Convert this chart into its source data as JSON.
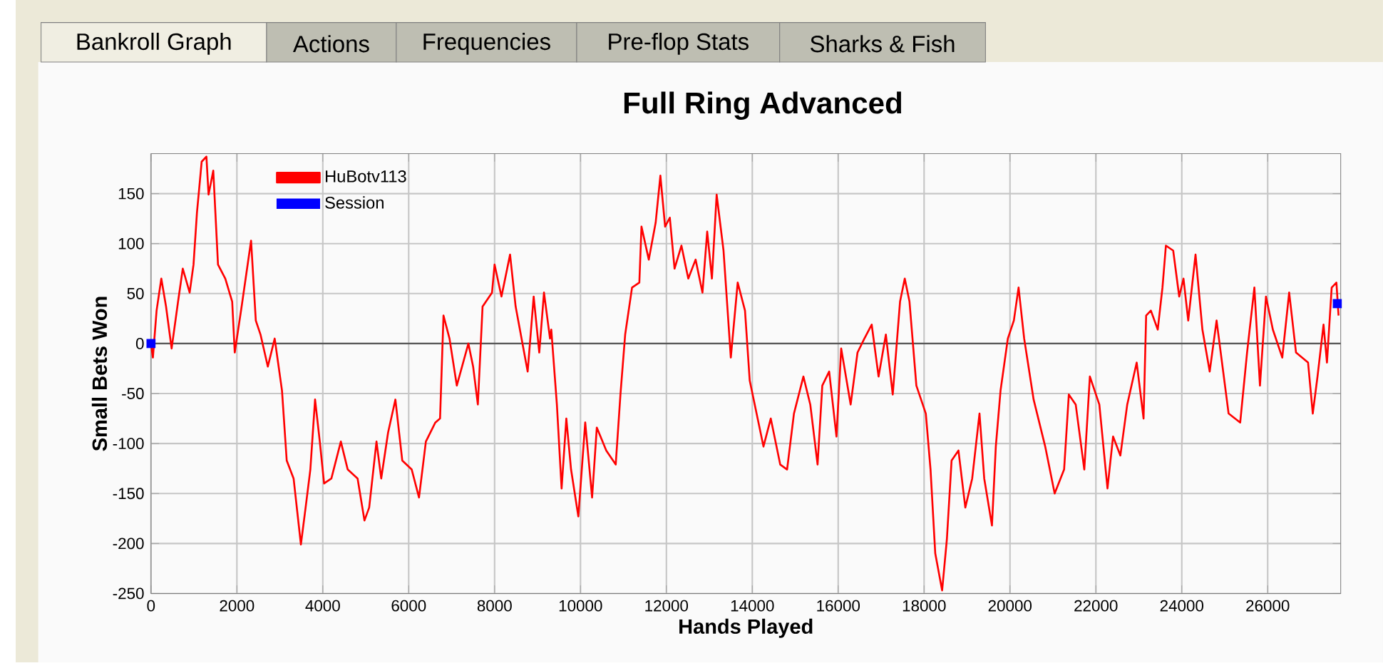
{
  "chart_data": {
    "type": "line",
    "title": "Full Ring Advanced",
    "xlabel": "Hands Played",
    "ylabel": "Small Bets Won",
    "annotations": [
      "Bankroll Graph",
      "Actions",
      "Frequencies",
      "Pre-flop Stats",
      "Sharks & Fish"
    ],
    "xlim": [
      0,
      27700
    ],
    "ylim": [
      -250,
      190
    ],
    "xticks": [
      0,
      2000,
      4000,
      6000,
      8000,
      10000,
      12000,
      14000,
      16000,
      18000,
      20000,
      22000,
      24000,
      26000
    ],
    "yticks": [
      -250,
      -200,
      -150,
      -100,
      -50,
      0,
      50,
      100,
      150
    ],
    "grid": true,
    "legend": "top left",
    "ref_lines": [
      {
        "axis": "y",
        "value": 0,
        "color": "#555555"
      }
    ],
    "series": [
      {
        "name": "HuBotv113",
        "color": "#ff0000",
        "line_style": "solid",
        "x": [
          0,
          44,
          130,
          240,
          350,
          480,
          630,
          740,
          900,
          990,
          1070,
          1180,
          1290,
          1340,
          1450,
          1560,
          1730,
          1890,
          1950,
          2110,
          2330,
          2440,
          2550,
          2720,
          2880,
          3050,
          3160,
          3320,
          3490,
          3600,
          3710,
          3820,
          3930,
          4030,
          4200,
          4420,
          4580,
          4810,
          4970,
          5080,
          5250,
          5360,
          5520,
          5690,
          5850,
          6070,
          6240,
          6400,
          6620,
          6730,
          6810,
          6950,
          7120,
          7390,
          7500,
          7610,
          7720,
          7940,
          8000,
          8160,
          8360,
          8490,
          8770,
          8910,
          9040,
          9150,
          9290,
          9320,
          9450,
          9560,
          9670,
          9780,
          9950,
          10110,
          10270,
          10380,
          10600,
          10820,
          10930,
          11040,
          11200,
          11370,
          11420,
          11590,
          11750,
          11860,
          11970,
          12080,
          12190,
          12350,
          12510,
          12680,
          12840,
          12950,
          13060,
          13170,
          13330,
          13500,
          13660,
          13830,
          13940,
          14100,
          14260,
          14430,
          14650,
          14810,
          14970,
          15190,
          15350,
          15520,
          15630,
          15790,
          15960,
          16070,
          16290,
          16450,
          16610,
          16780,
          16940,
          17110,
          17270,
          17440,
          17550,
          17660,
          17820,
          18040,
          18150,
          18260,
          18420,
          18530,
          18640,
          18800,
          18960,
          19120,
          19290,
          19400,
          19580,
          19670,
          19780,
          19950,
          20090,
          20200,
          20330,
          20550,
          20820,
          21040,
          21260,
          21370,
          21530,
          21730,
          21860,
          22080,
          22270,
          22400,
          22570,
          22730,
          22950,
          23110,
          23170,
          23280,
          23440,
          23550,
          23630,
          23800,
          23940,
          24040,
          24150,
          24320,
          24480,
          24650,
          24810,
          25090,
          25360,
          25520,
          25690,
          25820,
          25960,
          26120,
          26340,
          26500,
          26660,
          26940,
          27050,
          27160,
          27300,
          27380,
          27490,
          27600,
          27650
        ],
        "values": [
          0,
          -14,
          33,
          65,
          37,
          -5,
          42,
          75,
          51,
          79,
          131,
          182,
          187,
          149,
          173,
          79,
          65,
          42,
          -9,
          37,
          103,
          23,
          9,
          -23,
          5,
          -47,
          -117,
          -135,
          -201,
          -164,
          -126,
          -56,
          -98,
          -140,
          -135,
          -98,
          -126,
          -135,
          -177,
          -164,
          -98,
          -135,
          -89,
          -56,
          -117,
          -126,
          -154,
          -98,
          -79,
          -75,
          28,
          5,
          -42,
          0,
          -23,
          -61,
          37,
          51,
          79,
          47,
          89,
          37,
          -28,
          47,
          -9,
          51,
          5,
          14,
          -61,
          -145,
          -75,
          -126,
          -173,
          -79,
          -154,
          -84,
          -107,
          -121,
          -51,
          9,
          56,
          61,
          117,
          84,
          121,
          168,
          117,
          126,
          75,
          98,
          65,
          84,
          51,
          112,
          65,
          149,
          93,
          -14,
          61,
          33,
          -37,
          -70,
          -103,
          -75,
          -121,
          -126,
          -70,
          -33,
          -61,
          -121,
          -42,
          -28,
          -93,
          -5,
          -61,
          -9,
          5,
          19,
          -33,
          9,
          -51,
          42,
          65,
          42,
          -42,
          -70,
          -126,
          -210,
          -247,
          -196,
          -117,
          -107,
          -164,
          -135,
          -70,
          -135,
          -182,
          -103,
          -47,
          5,
          23,
          56,
          5,
          -56,
          -103,
          -150,
          -126,
          -51,
          -61,
          -126,
          -33,
          -61,
          -145,
          -93,
          -112,
          -61,
          -19,
          -75,
          28,
          33,
          14,
          56,
          98,
          93,
          47,
          65,
          23,
          89,
          14,
          -28,
          23,
          -70,
          -79,
          -9,
          56,
          -42,
          47,
          14,
          -14,
          51,
          -9,
          -19,
          -70,
          -33,
          19,
          -19,
          56,
          61,
          28
        ]
      },
      {
        "name": "Session",
        "color": "#0000ff",
        "type": "scatter",
        "marker": "square",
        "x": [
          0,
          27620
        ],
        "values": [
          0,
          40
        ]
      }
    ]
  }
}
